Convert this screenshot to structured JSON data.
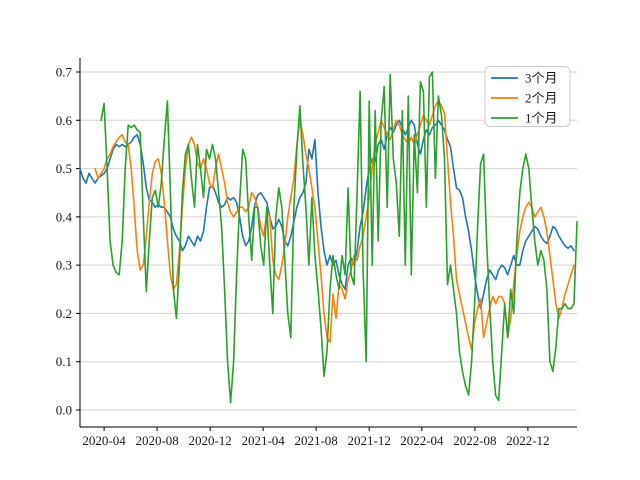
{
  "figure": {
    "background": "#ffffff",
    "grid_color": "#d3d3d3",
    "spine_color": "#000000",
    "text_color": "#1a1a1a",
    "legend_border_color": "#cccccc"
  },
  "chart_data": {
    "type": "line",
    "title": "",
    "xlabel": "",
    "ylabel": "",
    "grid": "horizontal-only",
    "ylim": [
      0.0,
      0.73
    ],
    "y_ticks": [
      0.0,
      0.1,
      0.2,
      0.3,
      0.4,
      0.5,
      0.6,
      0.7
    ],
    "y_tick_labels": [
      "0.0",
      "0.1",
      "0.2",
      "0.3",
      "0.4",
      "0.5",
      "0.6",
      "0.7"
    ],
    "x_tick_labels": [
      "2020-04",
      "2020-08",
      "2020-12",
      "2021-04",
      "2021-08",
      "2021-12",
      "2022-04",
      "2022-08",
      "2022-12"
    ],
    "x_tick_indices": [
      8,
      25.6,
      43.2,
      60.8,
      78.4,
      96,
      113.5,
      131.1,
      148.7
    ],
    "x_range_note": "weekly samples, 2020-02 through 2023-02",
    "legend": {
      "position": "upper right",
      "entries": [
        "3个月",
        "2个月",
        "1个月"
      ]
    },
    "series": [
      {
        "name": "3个月",
        "color": "#1f77b4",
        "values": [
          0.5,
          0.48,
          0.47,
          0.49,
          0.48,
          0.47,
          0.48,
          0.485,
          0.49,
          0.5,
          0.52,
          0.54,
          0.55,
          0.545,
          0.55,
          0.545,
          0.55,
          0.555,
          0.565,
          0.57,
          0.55,
          0.51,
          0.46,
          0.435,
          0.43,
          0.42,
          0.425,
          0.42,
          0.42,
          0.41,
          0.4,
          0.375,
          0.36,
          0.35,
          0.33,
          0.34,
          0.36,
          0.35,
          0.34,
          0.36,
          0.35,
          0.37,
          0.42,
          0.46,
          0.465,
          0.45,
          0.43,
          0.42,
          0.425,
          0.44,
          0.435,
          0.44,
          0.43,
          0.4,
          0.36,
          0.34,
          0.35,
          0.38,
          0.425,
          0.445,
          0.45,
          0.44,
          0.43,
          0.4,
          0.375,
          0.38,
          0.395,
          0.38,
          0.35,
          0.34,
          0.36,
          0.39,
          0.42,
          0.44,
          0.45,
          0.47,
          0.54,
          0.52,
          0.56,
          0.45,
          0.38,
          0.33,
          0.3,
          0.32,
          0.3,
          0.31,
          0.28,
          0.26,
          0.25,
          0.3,
          0.315,
          0.3,
          0.33,
          0.38,
          0.41,
          0.46,
          0.5,
          0.52,
          0.515,
          0.55,
          0.56,
          0.54,
          0.57,
          0.585,
          0.575,
          0.59,
          0.6,
          0.585,
          0.57,
          0.585,
          0.6,
          0.59,
          0.55,
          0.53,
          0.56,
          0.58,
          0.57,
          0.585,
          0.59,
          0.6,
          0.59,
          0.58,
          0.56,
          0.545,
          0.5,
          0.46,
          0.455,
          0.44,
          0.4,
          0.37,
          0.33,
          0.28,
          0.24,
          0.21,
          0.24,
          0.27,
          0.29,
          0.28,
          0.27,
          0.29,
          0.3,
          0.295,
          0.28,
          0.3,
          0.32,
          0.3,
          0.3,
          0.33,
          0.35,
          0.36,
          0.37,
          0.38,
          0.375,
          0.36,
          0.35,
          0.345,
          0.36,
          0.38,
          0.375,
          0.36,
          0.35,
          0.34,
          0.335,
          0.34,
          0.33,
          null
        ]
      },
      {
        "name": "2个月",
        "color": "#ff7f0e",
        "values": [
          null,
          null,
          null,
          null,
          null,
          0.5,
          0.48,
          0.49,
          0.5,
          0.52,
          0.53,
          0.545,
          0.555,
          0.565,
          0.57,
          0.555,
          0.55,
          0.5,
          0.42,
          0.33,
          0.29,
          0.3,
          0.36,
          0.43,
          0.49,
          0.515,
          0.52,
          0.49,
          0.43,
          0.35,
          0.28,
          0.25,
          0.26,
          0.33,
          0.42,
          0.5,
          0.55,
          0.565,
          0.55,
          0.51,
          0.5,
          0.52,
          0.5,
          0.47,
          0.46,
          0.5,
          0.53,
          0.5,
          0.47,
          0.43,
          0.41,
          0.4,
          0.41,
          0.42,
          0.42,
          0.41,
          0.42,
          0.45,
          0.44,
          0.42,
          0.38,
          0.36,
          0.41,
          0.4,
          0.31,
          0.28,
          0.27,
          0.3,
          0.34,
          0.4,
          0.44,
          0.48,
          0.55,
          0.6,
          0.57,
          0.53,
          0.5,
          0.46,
          0.42,
          0.35,
          0.28,
          0.2,
          0.15,
          0.14,
          0.24,
          0.19,
          0.26,
          0.25,
          0.23,
          0.27,
          0.29,
          0.32,
          0.31,
          0.34,
          0.36,
          0.4,
          0.44,
          0.5,
          0.55,
          0.575,
          0.6,
          0.585,
          0.57,
          0.56,
          0.58,
          0.6,
          0.59,
          0.57,
          0.56,
          0.55,
          0.565,
          0.55,
          0.57,
          0.59,
          0.61,
          0.6,
          0.59,
          0.61,
          0.63,
          0.64,
          0.63,
          0.615,
          0.52,
          0.43,
          0.36,
          0.27,
          0.24,
          0.21,
          0.18,
          0.15,
          0.125,
          0.18,
          0.21,
          0.23,
          0.15,
          0.18,
          0.21,
          0.235,
          0.22,
          0.235,
          0.235,
          0.22,
          0.15,
          0.19,
          0.26,
          0.32,
          0.37,
          0.4,
          0.42,
          0.43,
          0.42,
          0.4,
          0.41,
          0.42,
          0.4,
          0.37,
          0.32,
          0.27,
          0.22,
          0.19,
          0.21,
          0.24,
          0.26,
          0.28,
          0.3,
          null
        ]
      },
      {
        "name": "1个月",
        "color": "#2ca02c",
        "values": [
          null,
          null,
          null,
          null,
          null,
          null,
          null,
          0.6,
          0.635,
          0.5,
          0.35,
          0.3,
          0.285,
          0.28,
          0.35,
          0.5,
          0.59,
          0.585,
          0.59,
          0.58,
          0.575,
          0.4,
          0.245,
          0.35,
          0.44,
          0.455,
          0.42,
          0.47,
          0.56,
          0.64,
          0.45,
          0.25,
          0.19,
          0.3,
          0.45,
          0.53,
          0.55,
          0.48,
          0.42,
          0.55,
          0.5,
          0.44,
          0.54,
          0.52,
          0.55,
          0.52,
          0.45,
          0.38,
          0.25,
          0.1,
          0.015,
          0.1,
          0.28,
          0.43,
          0.54,
          0.52,
          0.4,
          0.31,
          0.42,
          0.42,
          0.34,
          0.3,
          0.42,
          0.3,
          0.2,
          0.4,
          0.46,
          0.42,
          0.31,
          0.2,
          0.15,
          0.42,
          0.54,
          0.63,
          0.51,
          0.42,
          0.3,
          0.44,
          0.32,
          0.25,
          0.17,
          0.07,
          0.12,
          0.25,
          0.32,
          0.28,
          0.25,
          0.32,
          0.28,
          0.46,
          0.28,
          0.26,
          0.45,
          0.66,
          0.29,
          0.1,
          0.64,
          0.3,
          0.62,
          0.35,
          0.6,
          0.67,
          0.42,
          0.695,
          0.52,
          0.47,
          0.36,
          0.62,
          0.3,
          0.65,
          0.28,
          0.57,
          0.45,
          0.68,
          0.66,
          0.42,
          0.69,
          0.7,
          0.48,
          0.65,
          0.61,
          0.52,
          0.26,
          0.3,
          0.25,
          0.2,
          0.12,
          0.08,
          0.05,
          0.031,
          0.1,
          0.22,
          0.38,
          0.51,
          0.53,
          0.35,
          0.22,
          0.1,
          0.03,
          0.02,
          0.12,
          0.22,
          0.15,
          0.25,
          0.2,
          0.35,
          0.45,
          0.5,
          0.53,
          0.5,
          0.42,
          0.35,
          0.3,
          0.33,
          0.31,
          0.25,
          0.1,
          0.08,
          0.13,
          0.21,
          0.21,
          0.22,
          0.21,
          0.21,
          0.22,
          0.39
        ]
      }
    ]
  }
}
